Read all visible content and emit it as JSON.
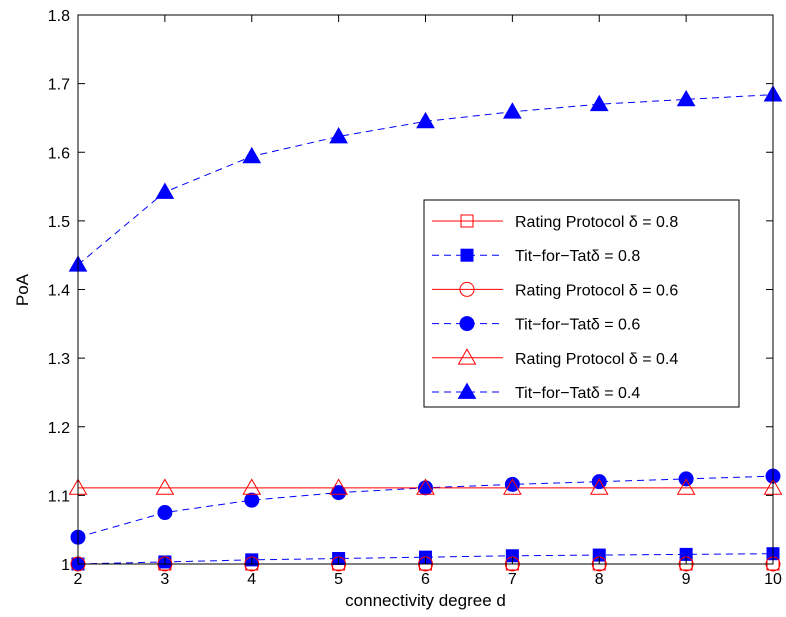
{
  "chart_data": {
    "type": "line",
    "xlabel": "connectivity degree d",
    "ylabel": "PoA",
    "xlim": [
      2,
      10
    ],
    "ylim": [
      1,
      1.8
    ],
    "xticks": [
      "2",
      "3",
      "4",
      "5",
      "6",
      "7",
      "8",
      "9",
      "10"
    ],
    "yticks": [
      "1",
      "1.1",
      "1.2",
      "1.3",
      "1.4",
      "1.5",
      "1.6",
      "1.7",
      "1.8"
    ],
    "grid": false,
    "legend_position": "right",
    "x": [
      2,
      3,
      4,
      5,
      6,
      7,
      8,
      9,
      10
    ],
    "series": [
      {
        "name": "Rating Protocol δ = 0.8",
        "color": "#ff0000",
        "line": "solid",
        "marker": "square-open",
        "values": [
          1.0,
          1.0,
          1.0,
          1.0,
          1.0,
          1.0,
          1.0,
          1.0,
          1.0
        ]
      },
      {
        "name": "Tit−for−Tatδ = 0.8",
        "color": "#0000ff",
        "line": "dashed",
        "marker": "square-filled",
        "values": [
          1.0,
          1.003,
          1.006,
          1.008,
          1.01,
          1.012,
          1.013,
          1.014,
          1.015
        ]
      },
      {
        "name": "Rating Protocol δ = 0.6",
        "color": "#ff0000",
        "line": "solid",
        "marker": "circle-open",
        "values": [
          1.0,
          1.0,
          1.0,
          1.0,
          1.0,
          1.0,
          1.0,
          1.0,
          1.0
        ]
      },
      {
        "name": "Tit−for−Tatδ = 0.6",
        "color": "#0000ff",
        "line": "dashed",
        "marker": "circle-filled",
        "values": [
          1.039,
          1.075,
          1.093,
          1.104,
          1.111,
          1.116,
          1.12,
          1.124,
          1.128
        ]
      },
      {
        "name": "Rating Protocol δ = 0.4",
        "color": "#ff0000",
        "line": "solid",
        "marker": "triangle-open",
        "values": [
          1.111,
          1.111,
          1.111,
          1.111,
          1.111,
          1.111,
          1.111,
          1.111,
          1.111
        ]
      },
      {
        "name": "Tit−for−Tatδ = 0.4",
        "color": "#0000ff",
        "line": "dashed",
        "marker": "triangle-filled",
        "values": [
          1.436,
          1.542,
          1.594,
          1.623,
          1.645,
          1.659,
          1.67,
          1.677,
          1.684
        ]
      }
    ]
  }
}
